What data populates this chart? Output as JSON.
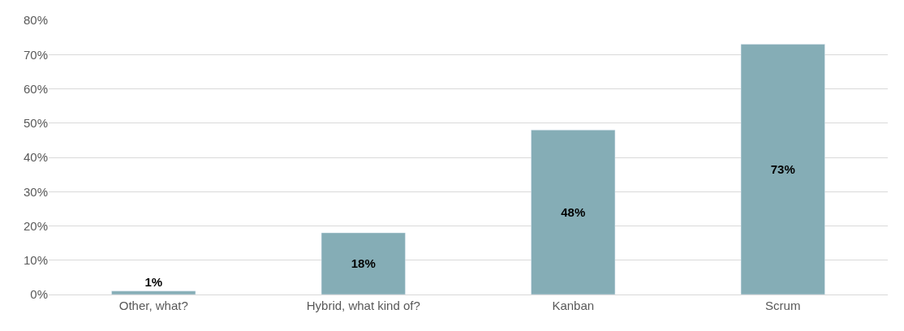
{
  "chart_data": {
    "type": "bar",
    "categories": [
      "Other, what?",
      "Hybrid, what kind of?",
      "Kanban",
      "Scrum"
    ],
    "values": [
      1,
      18,
      48,
      73
    ],
    "color": "#85adb6",
    "ylim": [
      0,
      80
    ],
    "yticks": [
      {
        "value": 0,
        "label": "0%"
      },
      {
        "value": 10,
        "label": "10%"
      },
      {
        "value": 20,
        "label": "20%"
      },
      {
        "value": 30,
        "label": "30%"
      },
      {
        "value": 40,
        "label": "40%"
      },
      {
        "value": 50,
        "label": "50%"
      },
      {
        "value": 60,
        "label": "60%"
      },
      {
        "value": 70,
        "label": "70%"
      },
      {
        "value": 80,
        "label": "80%"
      }
    ],
    "value_labels": [
      "1%",
      "18%",
      "48%",
      "73%"
    ],
    "grid": "y",
    "legend": false
  }
}
